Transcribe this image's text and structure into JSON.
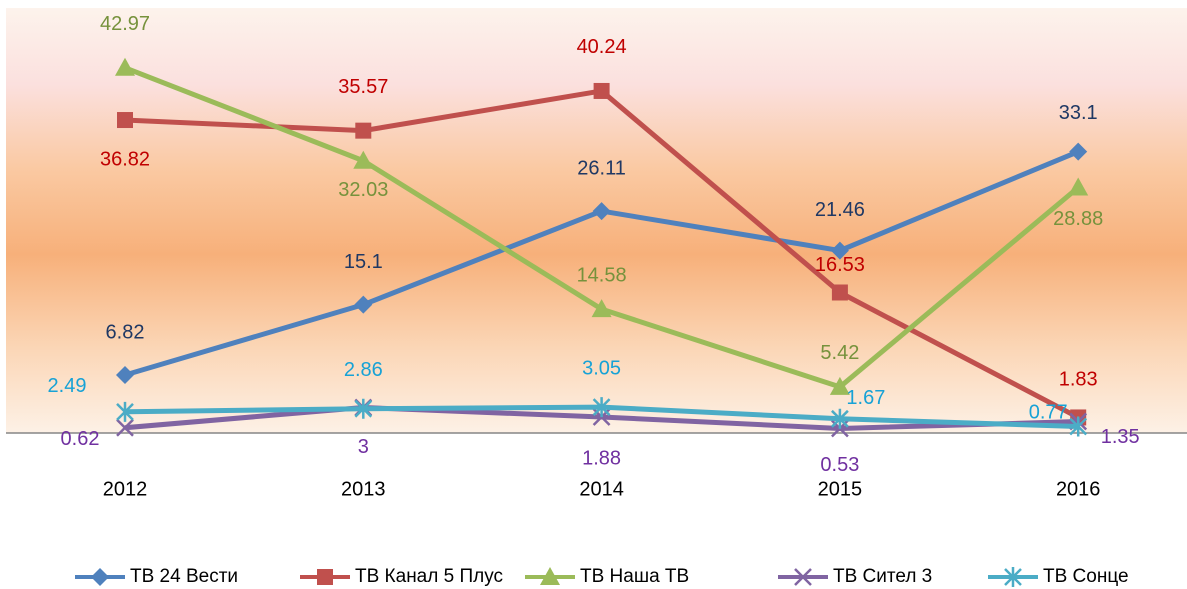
{
  "chart_data": {
    "type": "line",
    "categories": [
      "2012",
      "2013",
      "2014",
      "2015",
      "2016"
    ],
    "ylim": [
      0,
      50
    ],
    "grid": false,
    "legend": "bottom",
    "series": [
      {
        "name": "ТВ 24 Вести",
        "color": "#4f81bd",
        "label_color": "#1f3864",
        "marker": "diamond",
        "values": [
          6.82,
          15.1,
          26.11,
          21.46,
          33.1
        ]
      },
      {
        "name": "ТВ Канал  5 Плус",
        "color": "#c0504d",
        "label_color": "#c00000",
        "marker": "square",
        "values": [
          36.82,
          35.57,
          40.24,
          16.53,
          1.83
        ]
      },
      {
        "name": "ТВ Наша ТВ",
        "color": "#9bbb59",
        "label_color": "#76923c",
        "marker": "triangle",
        "values": [
          42.97,
          32.03,
          14.58,
          5.42,
          28.88
        ]
      },
      {
        "name": "ТВ Сител 3",
        "color": "#8064a2",
        "label_color": "#7030a0",
        "marker": "x",
        "values": [
          0.62,
          3,
          1.88,
          0.53,
          1.35
        ]
      },
      {
        "name": "ТВ Сонце",
        "color": "#4bacc6",
        "label_color": "#17a2d6",
        "marker": "star",
        "values": [
          2.49,
          2.86,
          3.05,
          1.67,
          0.77
        ]
      }
    ]
  }
}
